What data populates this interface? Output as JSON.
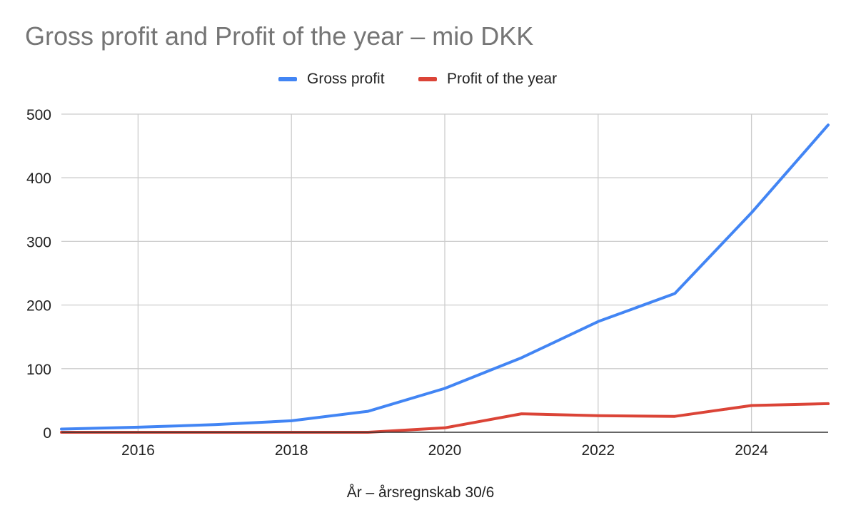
{
  "chart_data": {
    "type": "line",
    "title": "Gross profit and Profit of the year – mio DKK",
    "xlabel": "År – årsregnskab 30/6",
    "ylabel": "",
    "xlim": [
      2015,
      2025
    ],
    "ylim": [
      0,
      500
    ],
    "x_ticks": [
      "2016",
      "2018",
      "2020",
      "2022",
      "2024"
    ],
    "y_ticks": [
      "0",
      "100",
      "200",
      "300",
      "400",
      "500"
    ],
    "grid": true,
    "legend_position": "top",
    "x": [
      2015,
      2016,
      2017,
      2018,
      2019,
      2020,
      2021,
      2022,
      2023,
      2024,
      2025
    ],
    "series": [
      {
        "name": "Gross profit",
        "color": "#4285f4",
        "values": [
          5,
          8,
          12,
          18,
          33,
          69,
          117,
          174,
          218,
          345,
          483
        ]
      },
      {
        "name": "Profit of the year",
        "color": "#db4437",
        "values": [
          0,
          0,
          0,
          0,
          0,
          7,
          29,
          26,
          25,
          42,
          45
        ]
      }
    ]
  }
}
